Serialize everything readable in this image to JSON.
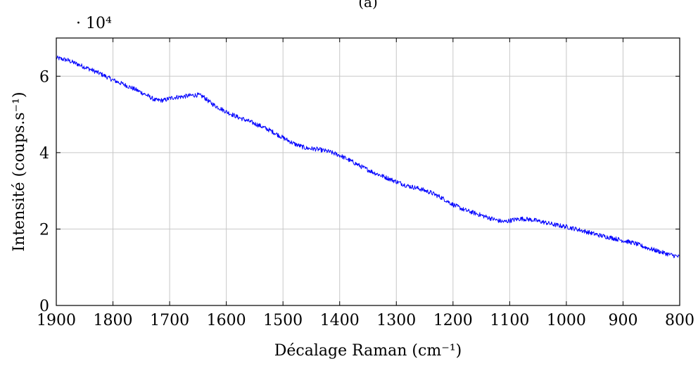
{
  "chart_data": {
    "type": "line",
    "title": "(a)",
    "xlabel": "Décalage Raman (cm⁻¹)",
    "ylabel": "Intensité (coups.s⁻¹)",
    "y_multiplier": "· 10⁴",
    "x_reversed": true,
    "xlim": [
      1900,
      800
    ],
    "ylim": [
      0,
      70000
    ],
    "grid": true,
    "x_ticks": [
      1900,
      1800,
      1700,
      1600,
      1500,
      1400,
      1300,
      1200,
      1100,
      1000,
      900,
      800
    ],
    "x_tick_labels": [
      "1900",
      "1800",
      "1700",
      "1600",
      "1500",
      "1400",
      "1300",
      "1200",
      "1100",
      "1000",
      "900",
      "800"
    ],
    "y_ticks": [
      0,
      20000,
      40000,
      60000
    ],
    "y_tick_labels": [
      "0",
      "2",
      "4",
      "6"
    ],
    "line_color": "#0000ff",
    "series": [
      {
        "x": [
          1900,
          1880,
          1860,
          1840,
          1820,
          1800,
          1780,
          1760,
          1740,
          1725,
          1710,
          1700,
          1690,
          1680,
          1670,
          1660,
          1650,
          1640,
          1630,
          1620,
          1600,
          1580,
          1560,
          1540,
          1520,
          1500,
          1480,
          1460,
          1440,
          1420,
          1400,
          1380,
          1360,
          1340,
          1320,
          1300,
          1280,
          1260,
          1240,
          1220,
          1200,
          1180,
          1160,
          1140,
          1120,
          1110,
          1100,
          1090,
          1080,
          1070,
          1060,
          1040,
          1020,
          1000,
          980,
          960,
          940,
          920,
          900,
          880,
          860,
          840,
          820,
          800
        ],
        "y": [
          64800,
          64200,
          63000,
          61800,
          60500,
          59000,
          57800,
          56500,
          55000,
          53700,
          53700,
          54200,
          54500,
          54600,
          54800,
          55000,
          55100,
          54600,
          53300,
          52300,
          50700,
          49300,
          48200,
          47000,
          45600,
          43900,
          42300,
          41200,
          40900,
          40300,
          39300,
          37800,
          36200,
          34800,
          33600,
          32400,
          31300,
          30600,
          29600,
          28200,
          26400,
          25000,
          24100,
          23100,
          22200,
          21900,
          22200,
          22500,
          22700,
          22600,
          22400,
          21800,
          21100,
          20600,
          19900,
          19100,
          18300,
          17700,
          17000,
          16300,
          15200,
          14300,
          13400,
          12700
        ]
      }
    ]
  }
}
